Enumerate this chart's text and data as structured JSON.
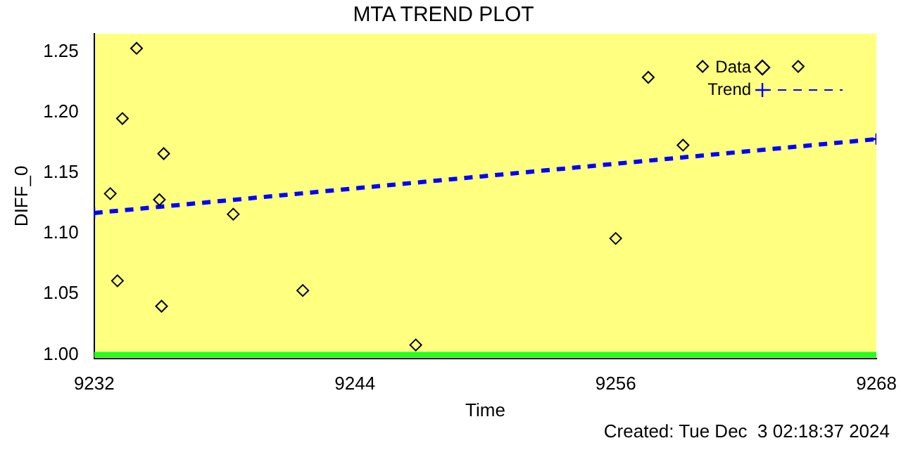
{
  "chart_data": {
    "type": "scatter",
    "title": "MTA TREND PLOT",
    "xlabel": "Time",
    "ylabel": "DIFF_0",
    "series": [
      {
        "name": "Data",
        "color": "#000000",
        "marker": "diamond",
        "x": [
          9232.74,
          9233.07,
          9233.3,
          9233.95,
          9235.0,
          9235.1,
          9235.2,
          9238.4,
          9241.6,
          9246.8,
          9256.0,
          9257.5,
          9259.1,
          9260.0,
          9264.4
        ],
        "values": [
          1.133,
          1.061,
          1.195,
          1.253,
          1.128,
          1.04,
          1.166,
          1.116,
          1.053,
          1.008,
          1.096,
          1.229,
          1.173,
          1.238,
          1.238
        ]
      },
      {
        "name": "Trend",
        "type": "line",
        "color": "#0000ff",
        "marker": "cross",
        "line_style": "dashed",
        "x": [
          9232,
          9268
        ],
        "values": [
          1.117,
          1.178
        ]
      }
    ],
    "xlim": [
      9232,
      9268
    ],
    "xticks": [
      9232,
      9244,
      9256,
      9268
    ],
    "ylim": [
      0.997,
      1.265
    ],
    "yticks": [
      {
        "value": 1.0,
        "label": "1.00"
      },
      {
        "value": 1.05,
        "label": "1.05"
      },
      {
        "value": 1.1,
        "label": "1.10"
      },
      {
        "value": 1.15,
        "label": "1.15"
      },
      {
        "value": 1.2,
        "label": "1.20"
      },
      {
        "value": 1.25,
        "label": "1.25"
      }
    ],
    "ref_lines": [
      {
        "axis": "y",
        "value": 1.0,
        "color": "#22ff22"
      }
    ],
    "legend": "top right",
    "grid": false,
    "annotations": [
      "Created: Tue Dec  3 02:18:37 2024"
    ]
  }
}
